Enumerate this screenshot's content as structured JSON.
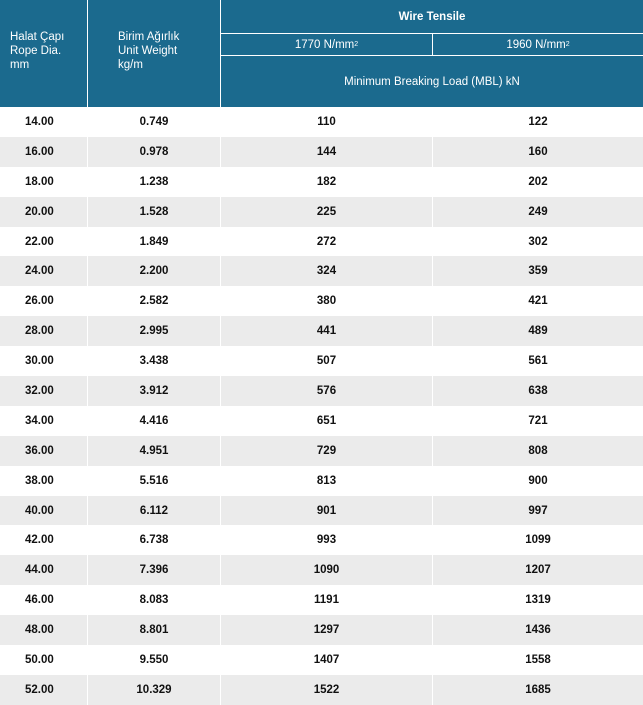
{
  "header": {
    "col1_lines": [
      "Halat Çapı",
      "Rope Dia.",
      "mm"
    ],
    "col2_lines": [
      "Birim Ağırlık",
      "Unit Weight",
      "kg/m"
    ],
    "wire_tensile": "Wire Tensile",
    "tensile1": "1770 N/mm",
    "tensile2": "1960 N/mm",
    "tensile_sup": "2",
    "mbl": "Minimum Breaking Load (MBL) kN"
  },
  "colors": {
    "header_bg": "#1b6a8e",
    "row_alt": "#ebebeb"
  },
  "rows": [
    [
      "14.00",
      "0.749",
      "110",
      "122"
    ],
    [
      "16.00",
      "0.978",
      "144",
      "160"
    ],
    [
      "18.00",
      "1.238",
      "182",
      "202"
    ],
    [
      "20.00",
      "1.528",
      "225",
      "249"
    ],
    [
      "22.00",
      "1.849",
      "272",
      "302"
    ],
    [
      "24.00",
      "2.200",
      "324",
      "359"
    ],
    [
      "26.00",
      "2.582",
      "380",
      "421"
    ],
    [
      "28.00",
      "2.995",
      "441",
      "489"
    ],
    [
      "30.00",
      "3.438",
      "507",
      "561"
    ],
    [
      "32.00",
      "3.912",
      "576",
      "638"
    ],
    [
      "34.00",
      "4.416",
      "651",
      "721"
    ],
    [
      "36.00",
      "4.951",
      "729",
      "808"
    ],
    [
      "38.00",
      "5.516",
      "813",
      "900"
    ],
    [
      "40.00",
      "6.112",
      "901",
      "997"
    ],
    [
      "42.00",
      "6.738",
      "993",
      "1099"
    ],
    [
      "44.00",
      "7.396",
      "1090",
      "1207"
    ],
    [
      "46.00",
      "8.083",
      "1191",
      "1319"
    ],
    [
      "48.00",
      "8.801",
      "1297",
      "1436"
    ],
    [
      "50.00",
      "9.550",
      "1407",
      "1558"
    ],
    [
      "52.00",
      "10.329",
      "1522",
      "1685"
    ]
  ]
}
